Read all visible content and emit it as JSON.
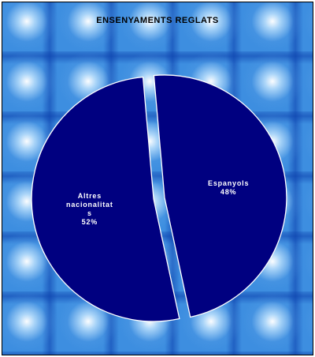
{
  "chart_data": {
    "type": "pie",
    "title": "ENSENYAMENTS REGLATS",
    "categories": [
      "Espanyols",
      "Altres nacionalitats"
    ],
    "values": [
      48,
      52
    ],
    "labels": [
      {
        "lines": [
          "Espanyols",
          "48%"
        ]
      },
      {
        "lines": [
          "Altres",
          "nacionalitat",
          "s",
          "52%"
        ]
      }
    ],
    "slice_color": "#000080",
    "exploded": true,
    "legend": "none"
  }
}
